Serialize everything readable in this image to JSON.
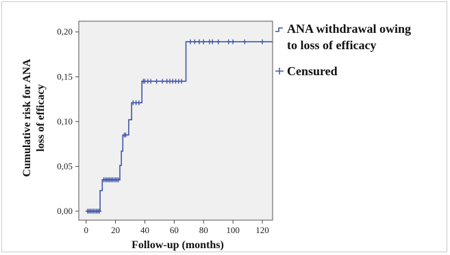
{
  "chart_data": {
    "type": "line",
    "title": "",
    "xlabel": "Follow-up (months)",
    "ylabel_lines": [
      "Cumulative risk for ANA",
      "loss of efficacy"
    ],
    "xlim": [
      -5,
      127
    ],
    "ylim": [
      -0.01,
      0.212
    ],
    "x_ticks": [
      0,
      20,
      40,
      60,
      80,
      100,
      120
    ],
    "y_ticks": [
      {
        "value": 0.0,
        "label": "0,00"
      },
      {
        "value": 0.05,
        "label": "0,05"
      },
      {
        "value": 0.1,
        "label": "0,10"
      },
      {
        "value": 0.15,
        "label": "0,15"
      },
      {
        "value": 0.2,
        "label": "0,20"
      }
    ],
    "grid": false,
    "line_color": "#3d55a8",
    "plot_background": "#f0f0f0",
    "legend_position": "right",
    "legend": [
      {
        "label_lines": [
          "ANA withdrawal owing",
          "to loss of efficacy"
        ],
        "symbol": "step"
      },
      {
        "label_lines": [
          "Censured"
        ],
        "symbol": "plus"
      }
    ],
    "series": [
      {
        "name": "ANA withdrawal owing to loss of efficacy",
        "steps": [
          [
            0,
            0.0
          ],
          [
            9.5,
            0.0
          ],
          [
            9.5,
            0.023
          ],
          [
            11,
            0.023
          ],
          [
            11,
            0.035
          ],
          [
            23,
            0.035
          ],
          [
            23,
            0.051
          ],
          [
            24,
            0.051
          ],
          [
            24,
            0.067
          ],
          [
            25,
            0.067
          ],
          [
            25,
            0.085
          ],
          [
            29,
            0.085
          ],
          [
            29,
            0.102
          ],
          [
            31,
            0.102
          ],
          [
            31,
            0.121
          ],
          [
            38,
            0.121
          ],
          [
            38,
            0.145
          ],
          [
            68,
            0.145
          ],
          [
            68,
            0.189
          ],
          [
            127,
            0.189
          ]
        ],
        "censored": [
          [
            1,
            0.0
          ],
          [
            2,
            0.0
          ],
          [
            3,
            0.0
          ],
          [
            4,
            0.0
          ],
          [
            5,
            0.0
          ],
          [
            6,
            0.0
          ],
          [
            7,
            0.0
          ],
          [
            8,
            0.0
          ],
          [
            9,
            0.0
          ],
          [
            12,
            0.035
          ],
          [
            13,
            0.035
          ],
          [
            14,
            0.035
          ],
          [
            15,
            0.035
          ],
          [
            16,
            0.035
          ],
          [
            17,
            0.035
          ],
          [
            18,
            0.035
          ],
          [
            19,
            0.035
          ],
          [
            20,
            0.035
          ],
          [
            21,
            0.035
          ],
          [
            22,
            0.035
          ],
          [
            26,
            0.085
          ],
          [
            27,
            0.085
          ],
          [
            32,
            0.121
          ],
          [
            34,
            0.121
          ],
          [
            36,
            0.121
          ],
          [
            39,
            0.145
          ],
          [
            40,
            0.145
          ],
          [
            42,
            0.145
          ],
          [
            44,
            0.145
          ],
          [
            48,
            0.145
          ],
          [
            52,
            0.145
          ],
          [
            55,
            0.145
          ],
          [
            57,
            0.145
          ],
          [
            59,
            0.145
          ],
          [
            61,
            0.145
          ],
          [
            63,
            0.145
          ],
          [
            65,
            0.145
          ],
          [
            71,
            0.189
          ],
          [
            74,
            0.189
          ],
          [
            77,
            0.189
          ],
          [
            80,
            0.189
          ],
          [
            84,
            0.189
          ],
          [
            86,
            0.189
          ],
          [
            90,
            0.189
          ],
          [
            97,
            0.189
          ],
          [
            100,
            0.189
          ],
          [
            108,
            0.189
          ],
          [
            120,
            0.189
          ]
        ]
      }
    ]
  }
}
